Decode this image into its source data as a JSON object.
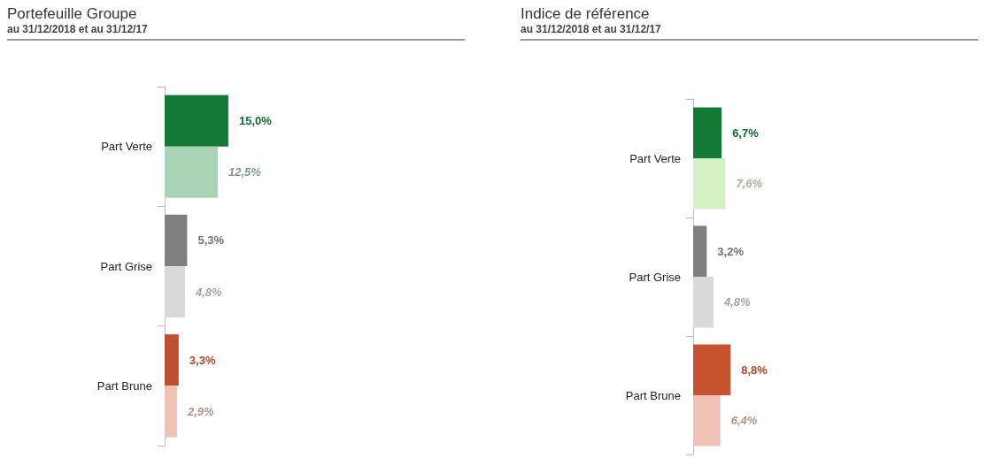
{
  "chart_data": [
    {
      "type": "bar",
      "orientation": "horizontal",
      "title": "Portefeuille Groupe",
      "subtitle": "au 31/12/2018 et au 31/12/17",
      "categories": [
        "Part Verte",
        "Part Grise",
        "Part Brune"
      ],
      "tick_labels": "y",
      "series": [
        {
          "colors": [
            "#127a35",
            "#7f7f7f",
            "#c0502d"
          ],
          "values": [
            15.0,
            5.3,
            3.3
          ],
          "value_labels": [
            "15,0%",
            "5,3%",
            "3,3%"
          ]
        },
        {
          "colors": [
            "#a8d3b4",
            "#d9d9d9",
            "#efc2b5"
          ],
          "values": [
            12.5,
            4.8,
            2.9
          ],
          "value_labels": [
            "12,5%",
            "4,8%",
            "2,9%"
          ]
        }
      ]
    },
    {
      "type": "bar",
      "orientation": "horizontal",
      "title": "Indice de référence",
      "subtitle": "au 31/12/2018 et au 31/12/17",
      "categories": [
        "Part Verte",
        "Part Grise",
        "Part Brune"
      ],
      "tick_labels": "y",
      "series": [
        {
          "colors": [
            "#127a35",
            "#7f7f7f",
            "#c6522e"
          ],
          "values": [
            6.7,
            3.2,
            8.8
          ],
          "value_labels": [
            "6,7%",
            "3,2%",
            "8,8%"
          ]
        },
        {
          "colors": [
            "#d5f0c2",
            "#d9d9d9",
            "#efc2b5"
          ],
          "values": [
            7.6,
            4.8,
            6.4
          ],
          "value_labels": [
            "7,6%",
            "4,8%",
            "6,4%"
          ]
        }
      ]
    }
  ]
}
